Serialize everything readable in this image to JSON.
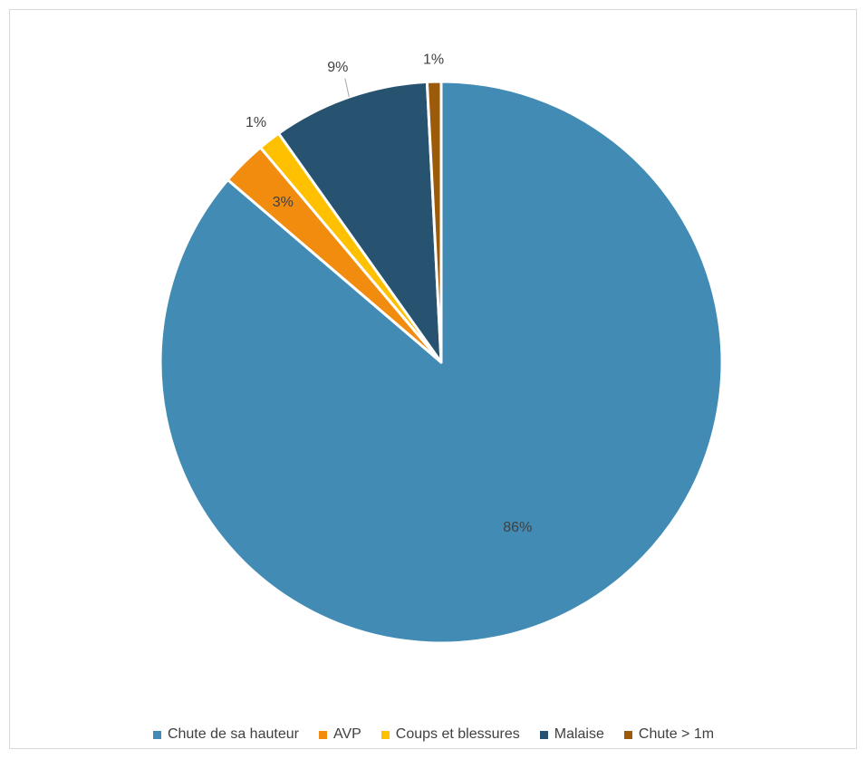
{
  "chart_data": {
    "type": "pie",
    "title": "",
    "start_angle_deg": 0,
    "direction": "clockwise",
    "slices": [
      {
        "name": "Chute de sa hauteur",
        "value": 86,
        "label": "86%",
        "color": "#428bb5",
        "label_placement": "inside"
      },
      {
        "name": "AVP",
        "value": 2.6,
        "label": "3%",
        "color": "#f28c0f",
        "label_placement": "inside"
      },
      {
        "name": "Coups et blessures",
        "value": 1.3,
        "label": "1%",
        "color": "#ffc000",
        "label_placement": "outside"
      },
      {
        "name": "Malaise",
        "value": 9,
        "label": "9%",
        "color": "#275370",
        "label_placement": "outside-leader"
      },
      {
        "name": "Chute > 1m",
        "value": 0.8,
        "label": "1%",
        "color": "#9c5b0a",
        "label_placement": "outside"
      }
    ],
    "legend_position": "bottom",
    "legend": [
      "Chute de sa hauteur",
      "AVP",
      "Coups et blessures",
      "Malaise",
      "Chute > 1m"
    ]
  }
}
